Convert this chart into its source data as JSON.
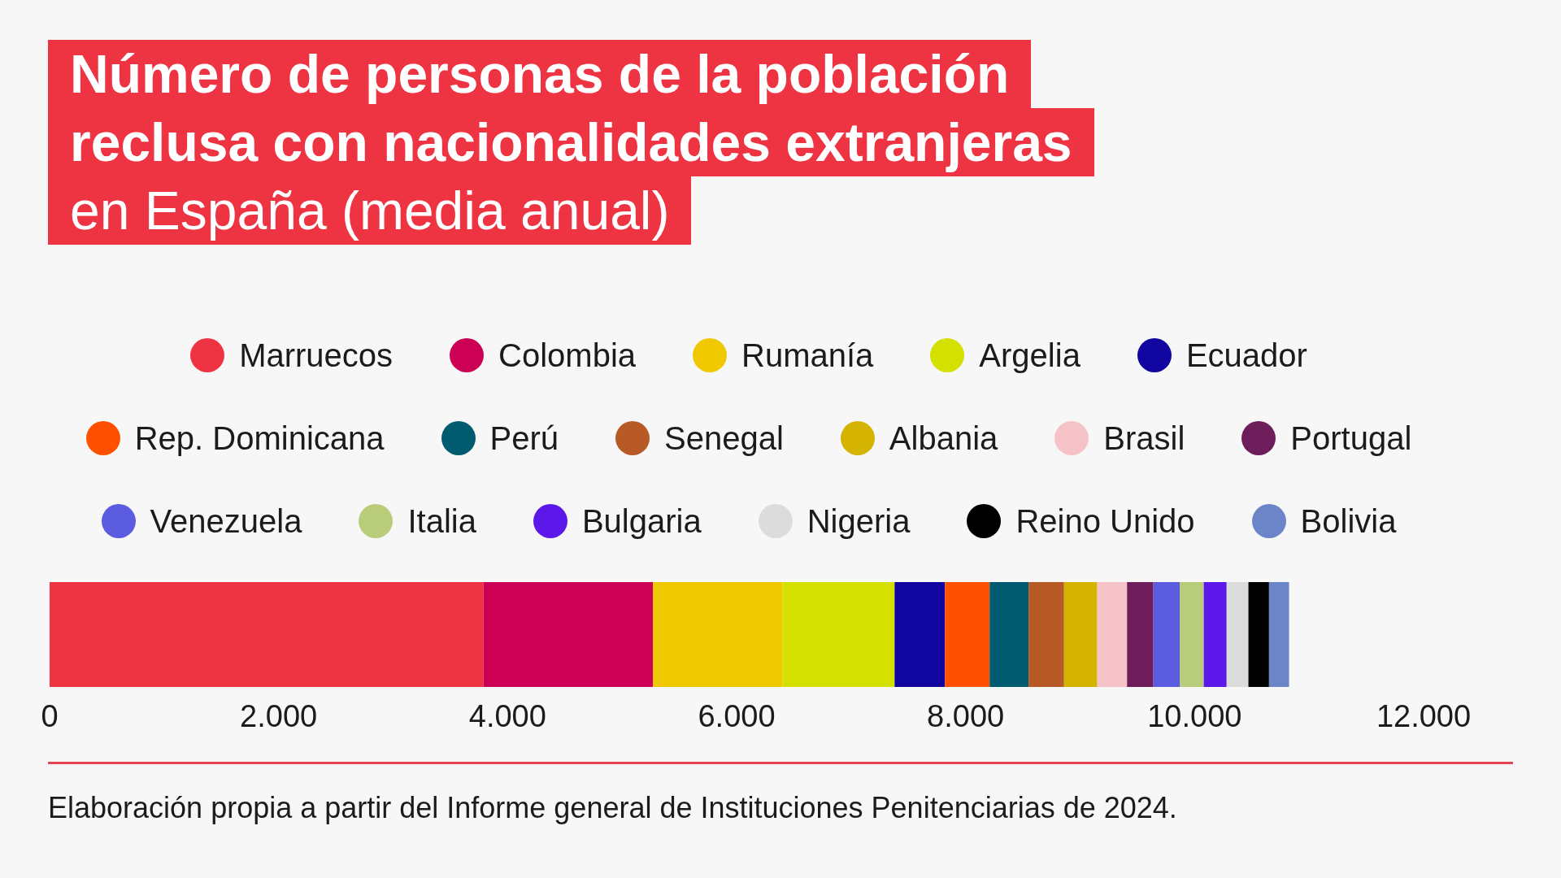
{
  "chart_data": {
    "type": "bar",
    "title": "Número de personas de la población reclusa con nacionalidades extranjeras",
    "subtitle": "en España (media anual)",
    "orientation": "horizontal",
    "stacked": true,
    "legend": "top",
    "categories": [
      null
    ],
    "series": [
      {
        "name": "Marruecos",
        "color": "#ee3342",
        "values": [
          3790
        ]
      },
      {
        "name": "Colombia",
        "color": "#cc0055",
        "values": [
          1480
        ]
      },
      {
        "name": "Rumanía",
        "color": "#f0c800",
        "values": [
          1130
        ]
      },
      {
        "name": "Argelia",
        "color": "#d4e000",
        "values": [
          980
        ]
      },
      {
        "name": "Ecuador",
        "color": "#10069f",
        "values": [
          440
        ]
      },
      {
        "name": "Rep. Dominicana",
        "color": "#ff5000",
        "values": [
          390
        ]
      },
      {
        "name": "Perú",
        "color": "#005a70",
        "values": [
          340
        ]
      },
      {
        "name": "Senegal",
        "color": "#b85a26",
        "values": [
          310
        ]
      },
      {
        "name": "Albania",
        "color": "#d4b400",
        "values": [
          290
        ]
      },
      {
        "name": "Brasil",
        "color": "#f5c2c7",
        "values": [
          260
        ]
      },
      {
        "name": "Portugal",
        "color": "#6c1d5a",
        "values": [
          230
        ]
      },
      {
        "name": "Venezuela",
        "color": "#5c5ce0",
        "values": [
          230
        ]
      },
      {
        "name": "Italia",
        "color": "#b8cc7a",
        "values": [
          210
        ]
      },
      {
        "name": "Bulgaria",
        "color": "#5c18e8",
        "values": [
          200
        ]
      },
      {
        "name": "Nigeria",
        "color": "#dcdcdc",
        "values": [
          190
        ]
      },
      {
        "name": "Reino Unido",
        "color": "#000000",
        "values": [
          180
        ]
      },
      {
        "name": "Bolivia",
        "color": "#6c84c8",
        "values": [
          175
        ]
      }
    ],
    "xlim": [
      0,
      12000
    ],
    "xticks": [
      0,
      {
        "value": 2000,
        "label": "2.000"
      },
      {
        "value": 4000,
        "label": "4.000"
      },
      {
        "value": 6000,
        "label": "6.000"
      },
      {
        "value": 8000,
        "label": "8.000"
      },
      {
        "value": 10000,
        "label": "10.000"
      },
      {
        "value": 12000,
        "label": "12.000"
      }
    ],
    "annotations": [
      "Elaboración propia a partir del Informe general de Instituciones Penitenciarias de 2024."
    ]
  }
}
